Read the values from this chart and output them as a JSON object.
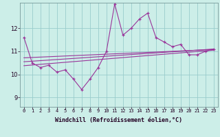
{
  "xlabel": "Windchill (Refroidissement éolien,°C)",
  "background_color": "#cceee8",
  "line_color": "#993399",
  "grid_color": "#99cccc",
  "xlim": [
    -0.5,
    23.5
  ],
  "ylim": [
    8.6,
    13.1
  ],
  "yticks": [
    9,
    10,
    11,
    12
  ],
  "hours": [
    0,
    1,
    2,
    3,
    4,
    5,
    6,
    7,
    8,
    9,
    10,
    11,
    12,
    13,
    14,
    15,
    16,
    17,
    18,
    19,
    20,
    21,
    22,
    23
  ],
  "temp": [
    11.6,
    10.5,
    10.3,
    10.4,
    10.1,
    10.2,
    9.8,
    9.35,
    9.8,
    10.3,
    11.0,
    13.05,
    11.7,
    12.0,
    12.4,
    12.65,
    11.6,
    11.4,
    11.2,
    11.3,
    10.85,
    10.85,
    11.0,
    11.1
  ],
  "reg_lines": [
    {
      "x": [
        0,
        23
      ],
      "y": [
        10.72,
        11.08
      ]
    },
    {
      "x": [
        0,
        23
      ],
      "y": [
        10.55,
        11.1
      ]
    },
    {
      "x": [
        0,
        23
      ],
      "y": [
        10.38,
        11.05
      ]
    }
  ],
  "xtick_labels": [
    "0",
    "1",
    "2",
    "3",
    "4",
    "5",
    "6",
    "7",
    "8",
    "9",
    "10",
    "11",
    "12",
    "13",
    "14",
    "15",
    "16",
    "17",
    "18",
    "19",
    "20",
    "21",
    "22",
    "23"
  ],
  "ytick_labels": [
    "9",
    "10",
    "11",
    "12"
  ],
  "xlabel_fontsize": 6,
  "tick_fontsize": 5,
  "line_width": 0.8,
  "marker_size": 3
}
